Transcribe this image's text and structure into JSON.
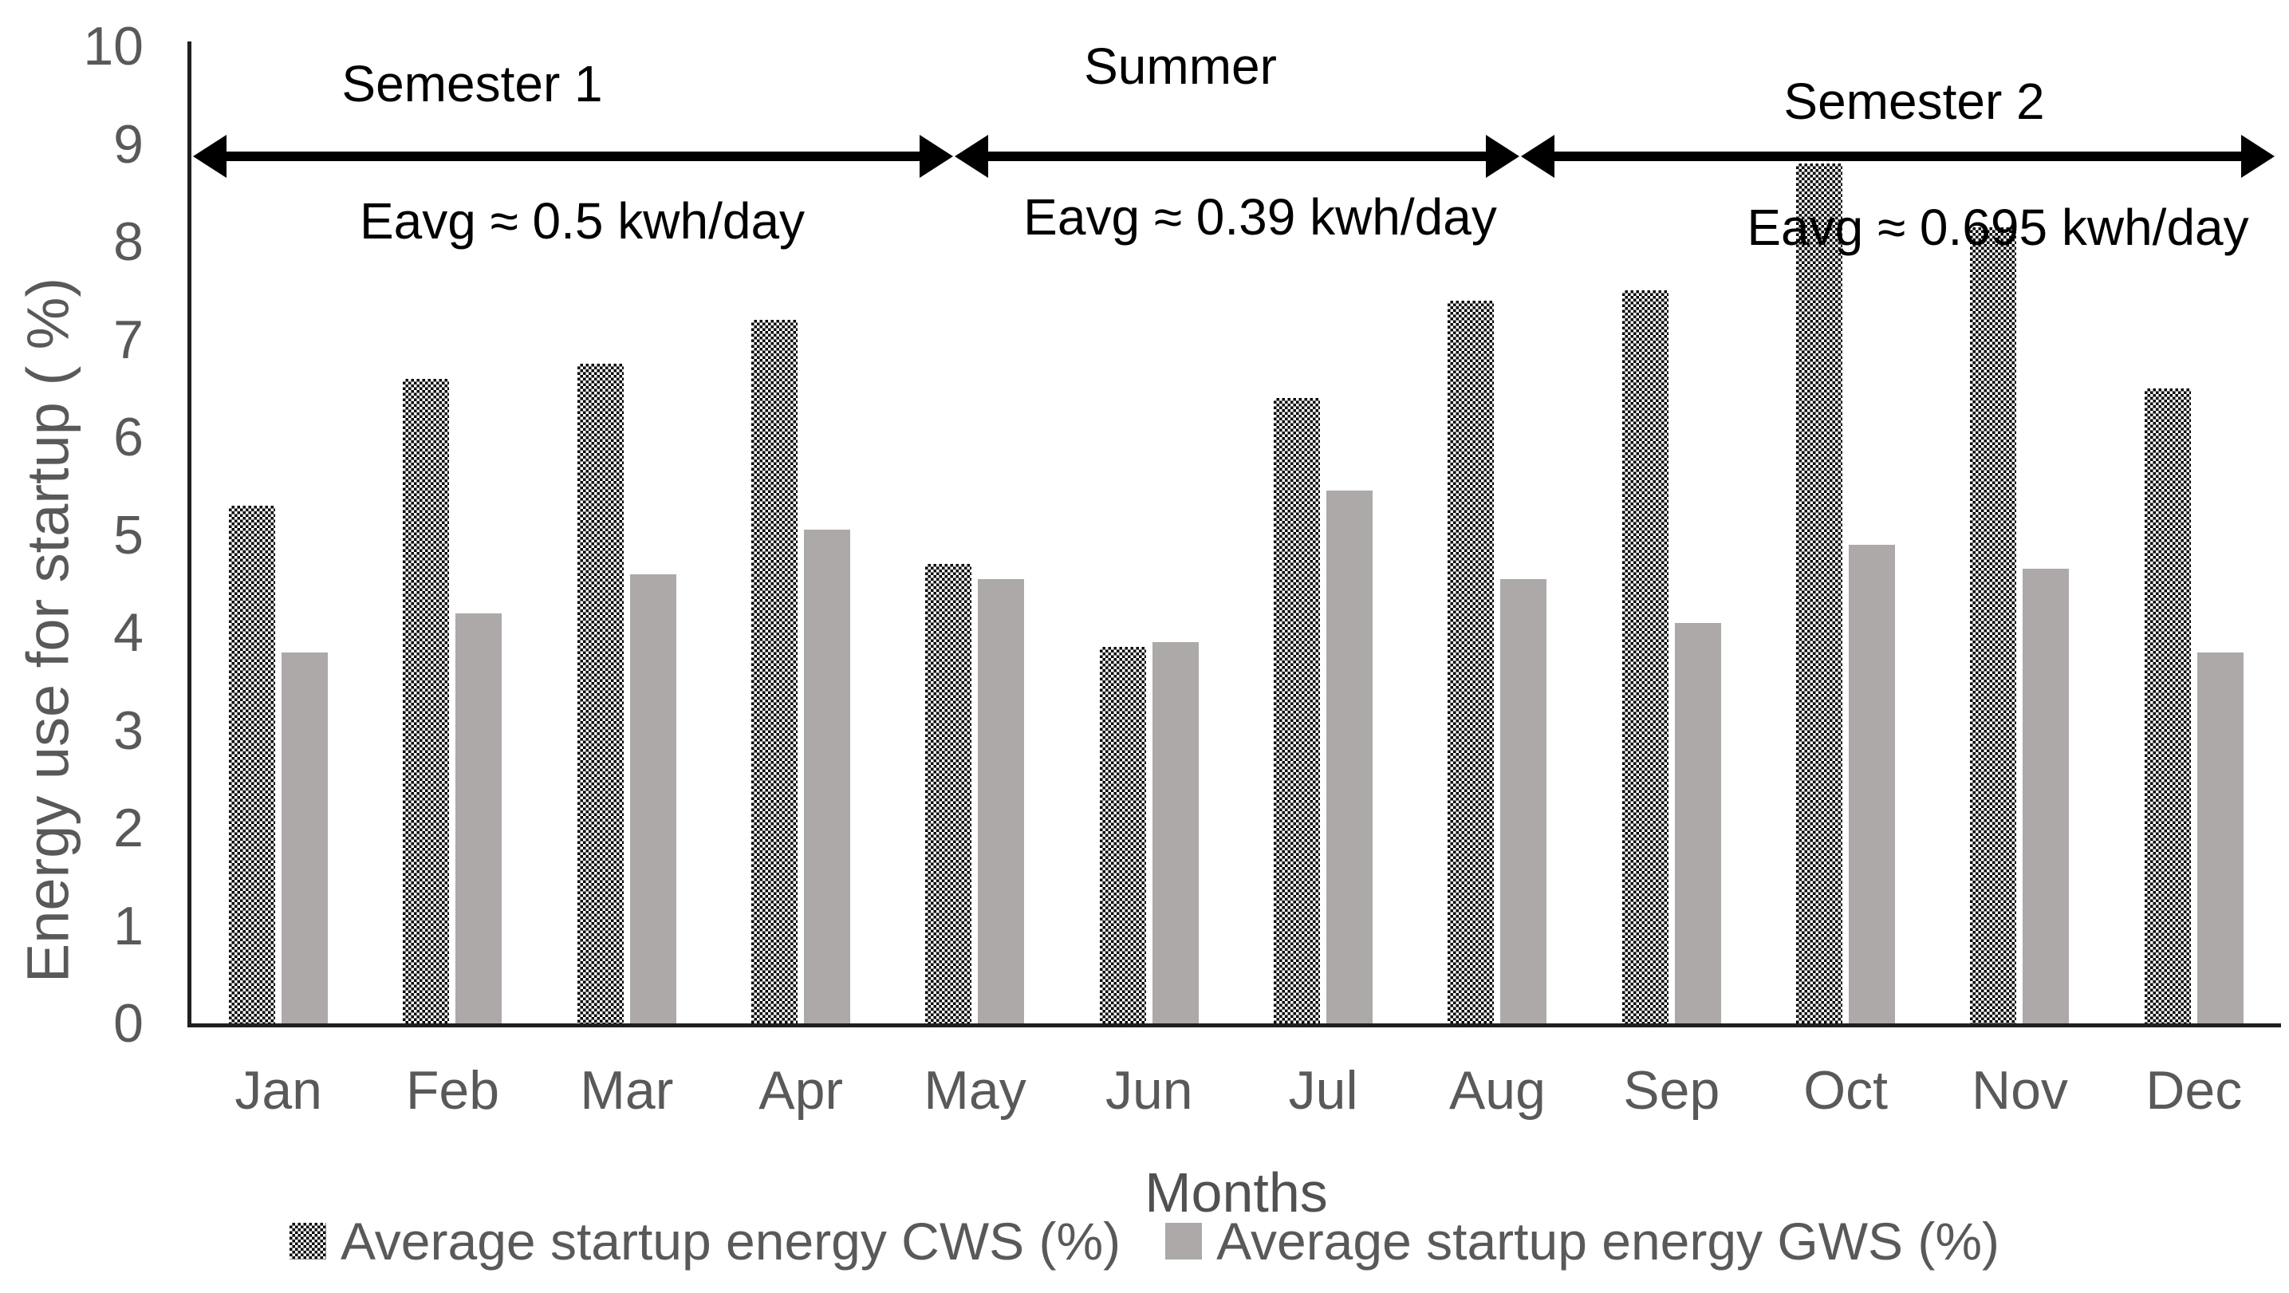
{
  "chart_data": {
    "type": "bar",
    "title": "",
    "categories": [
      "Jan",
      "Feb",
      "Mar",
      "Apr",
      "May",
      "Jun",
      "Jul",
      "Aug",
      "Sep",
      "Oct",
      "Nov",
      "Dec"
    ],
    "series": [
      {
        "name": "Average startup energy CWS (%)",
        "values": [
          5.3,
          6.6,
          6.75,
          7.2,
          4.7,
          3.85,
          6.4,
          7.4,
          7.5,
          8.8,
          8.15,
          6.5
        ],
        "fill": "black-white dotted-diamond checker pattern"
      },
      {
        "name": "Average startup energy GWS (%)",
        "values": [
          3.8,
          4.2,
          4.6,
          5.05,
          4.55,
          3.9,
          5.45,
          4.55,
          4.1,
          4.9,
          4.65,
          3.8
        ],
        "fill": "#ada9a9"
      }
    ],
    "xlabel": "Months",
    "ylabel": "Energy use for startup ( %)",
    "ylim": [
      0,
      10
    ],
    "yticks": [
      0,
      1,
      2,
      3,
      4,
      5,
      6,
      7,
      8,
      9,
      10
    ],
    "grid": false,
    "legend_position": "bottom",
    "annotations": [
      {
        "region": "Semester 1",
        "eavg": "Eavg ≈ 0.5 kwh/day",
        "span_months": [
          "Jan",
          "May"
        ]
      },
      {
        "region": "Summer",
        "eavg": "Eavg ≈ 0.39 kwh/day",
        "span_months": [
          "May",
          "Aug"
        ]
      },
      {
        "region": "Semester 2",
        "eavg": "Eavg ≈ 0.695 kwh/day",
        "span_months": [
          "Aug",
          "Dec"
        ]
      }
    ],
    "colors": {
      "cws_pattern_fg": "#000000",
      "cws_pattern_bg": "#ffffff",
      "gws_bar": "#ada9a9",
      "axis": "#1f1f1f",
      "tick_text": "#595959",
      "annotation_text": "#000000"
    }
  }
}
